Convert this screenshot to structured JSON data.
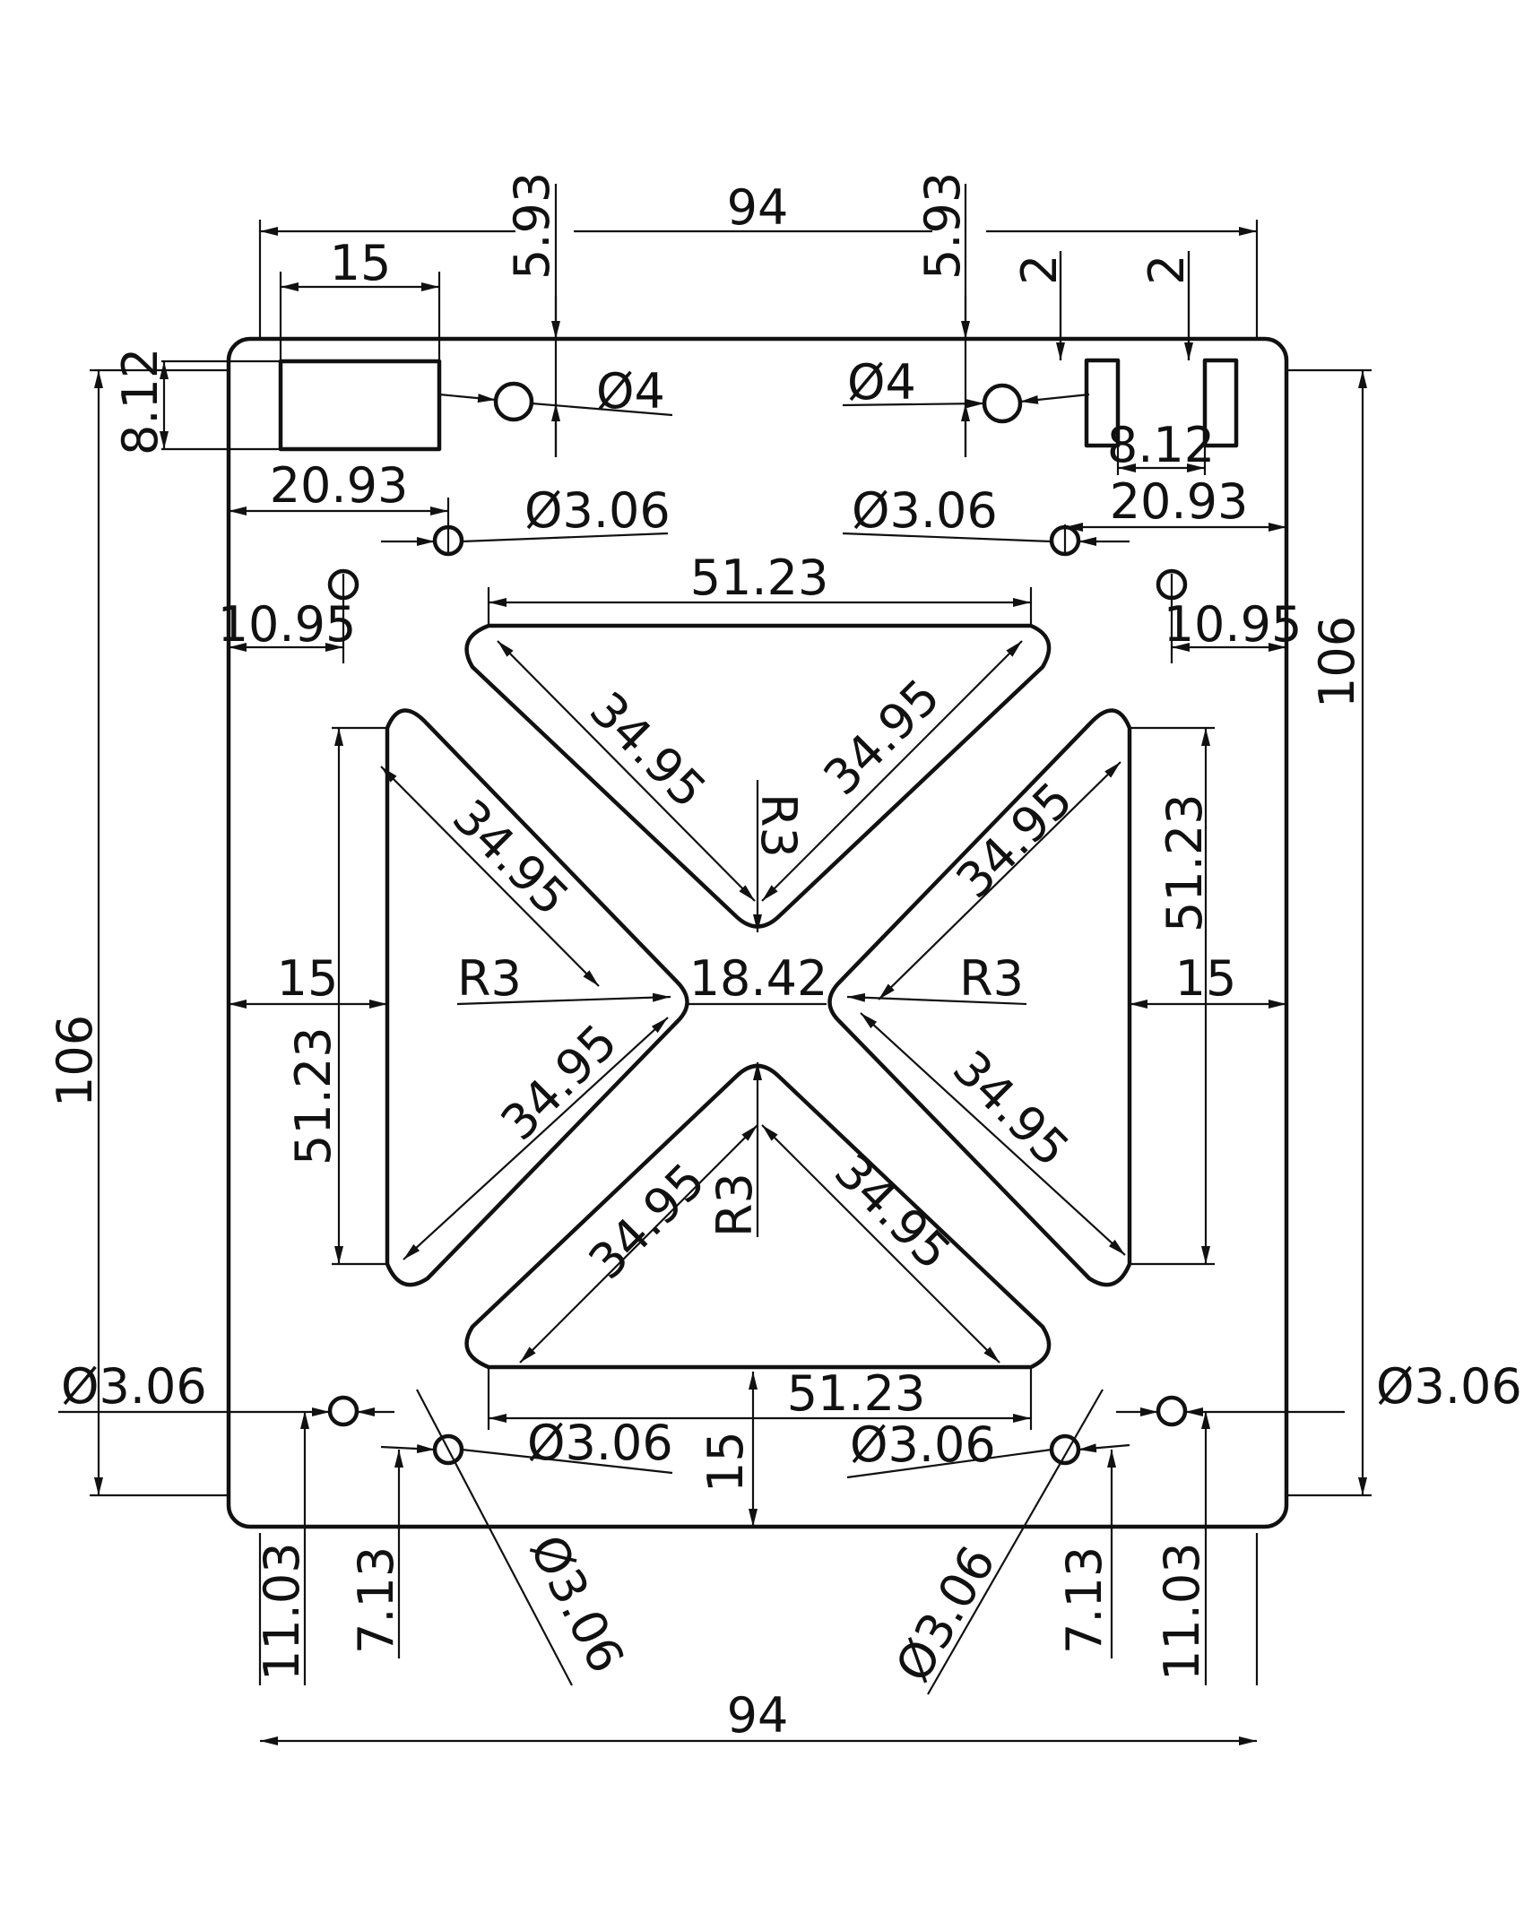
{
  "drawing": {
    "outline_color": "#111111",
    "background": "#ffffff",
    "dimensions": {
      "width_top": "94",
      "width_bottom": "94",
      "height_left": "106",
      "height_right": "106",
      "top_offset_left": "5.93",
      "top_offset_right": "5.93",
      "connector_width": "15",
      "connector_height": "8.12",
      "slot_offset_left": "2",
      "slot_offset_right": "2",
      "slot_spacing": "8.12",
      "hole_x_left": "20.93",
      "hole_x_right": "20.93",
      "hole_x_upper_left": "10.95",
      "hole_x_upper_right": "10.95",
      "diam_4_left": "Ø4",
      "diam_4_right": "Ø4",
      "diam_306_upper_left": "Ø3.06",
      "diam_306_upper_right": "Ø3.06",
      "diam_306_far_left": "Ø3.06",
      "diam_306_far_right": "Ø3.06",
      "diam_306_bottom_left": "Ø3.06",
      "diam_306_bottom_right": "Ø3.06",
      "diam_306_diag_left": "Ø3.06",
      "diam_306_diag_right": "Ø3.06",
      "cutout_top_width": "51.23",
      "cutout_bottom_width": "51.23",
      "cutout_left_height": "51.23",
      "cutout_right_height": "51.23",
      "cutout_side_1": "34.95",
      "cutout_side_2": "34.95",
      "cutout_side_3": "34.95",
      "cutout_side_4": "34.95",
      "cutout_side_5": "34.95",
      "cutout_side_6": "34.95",
      "cutout_side_7": "34.95",
      "cutout_side_8": "34.95",
      "radius_top": "R3",
      "radius_bottom": "R3",
      "radius_left": "R3",
      "radius_right": "R3",
      "center_gap": "18.42",
      "margin_left": "15",
      "margin_right": "15",
      "margin_bottom": "15",
      "bottom_hole_y_left_outer": "11.03",
      "bottom_hole_y_left_inner": "7.13",
      "bottom_hole_y_right_outer": "11.03",
      "bottom_hole_y_right_inner": "7.13"
    }
  }
}
